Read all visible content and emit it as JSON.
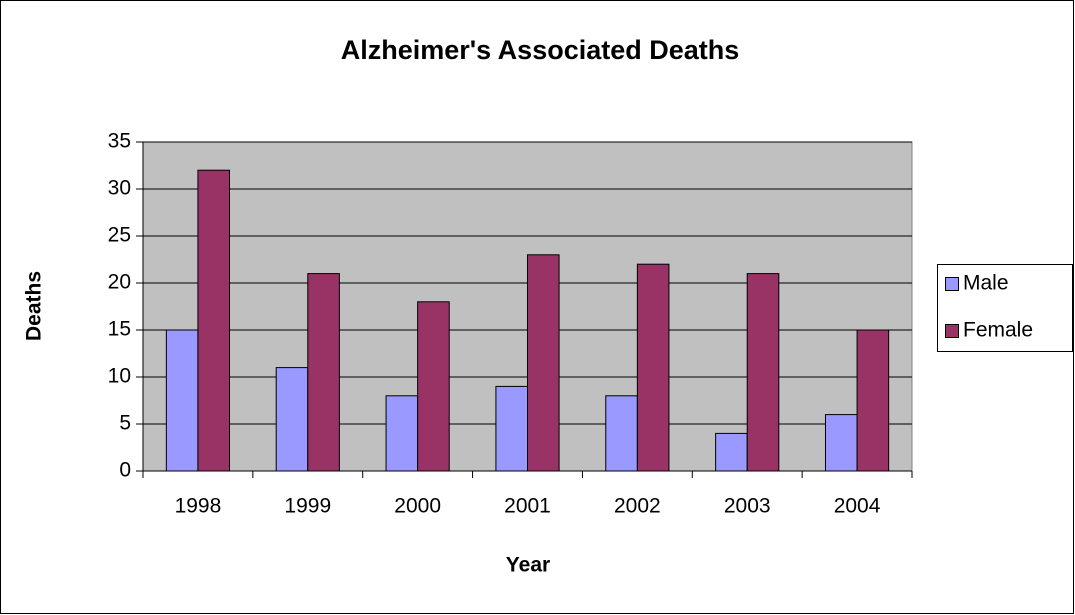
{
  "chart_data": {
    "type": "bar",
    "title": "Alzheimer's Associated Deaths",
    "xlabel": "Year",
    "ylabel": "Deaths",
    "categories": [
      "1998",
      "1999",
      "2000",
      "2001",
      "2002",
      "2003",
      "2004"
    ],
    "series": [
      {
        "name": "Male",
        "color": "#9999ff",
        "values": [
          15,
          11,
          8,
          9,
          8,
          4,
          6
        ]
      },
      {
        "name": "Female",
        "color": "#993366",
        "values": [
          32,
          21,
          18,
          23,
          22,
          21,
          15
        ]
      }
    ],
    "ylim": [
      0,
      35
    ],
    "yticks": [
      0,
      5,
      10,
      15,
      20,
      25,
      30,
      35
    ],
    "grid": true,
    "legend": "right",
    "plot_background": "#c0c0c0"
  }
}
